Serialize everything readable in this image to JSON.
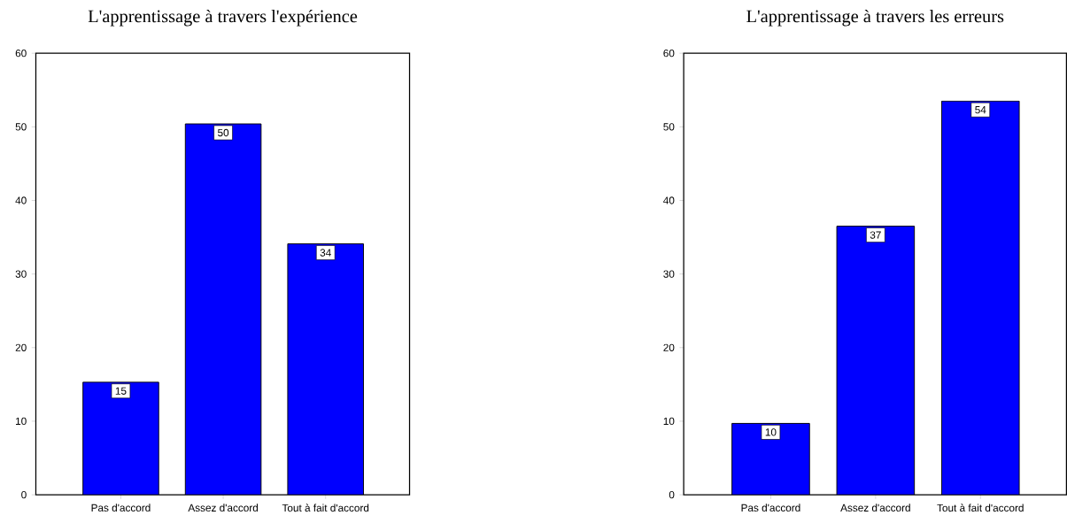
{
  "chart_data": [
    {
      "type": "bar",
      "title": "L'apprentissage à travers l'expérience",
      "categories": [
        "Pas d'accord",
        "Assez d'accord",
        "Tout à fait d'accord"
      ],
      "values": [
        15.3,
        50.4,
        34.1
      ],
      "value_labels": [
        "15",
        "50",
        "34"
      ],
      "color": "#0000ff",
      "ylim": [
        0,
        60
      ],
      "yticks": [
        0,
        10,
        20,
        30,
        40,
        50,
        60
      ]
    },
    {
      "type": "bar",
      "title": "L'apprentissage à travers les erreurs",
      "categories": [
        "Pas d'accord",
        "Assez d'accord",
        "Tout à fait d'accord"
      ],
      "values": [
        9.7,
        36.5,
        53.5
      ],
      "value_labels": [
        "10",
        "37",
        "54"
      ],
      "color": "#0000ff",
      "ylim": [
        0,
        60
      ],
      "yticks": [
        0,
        10,
        20,
        30,
        40,
        50,
        60
      ]
    }
  ]
}
